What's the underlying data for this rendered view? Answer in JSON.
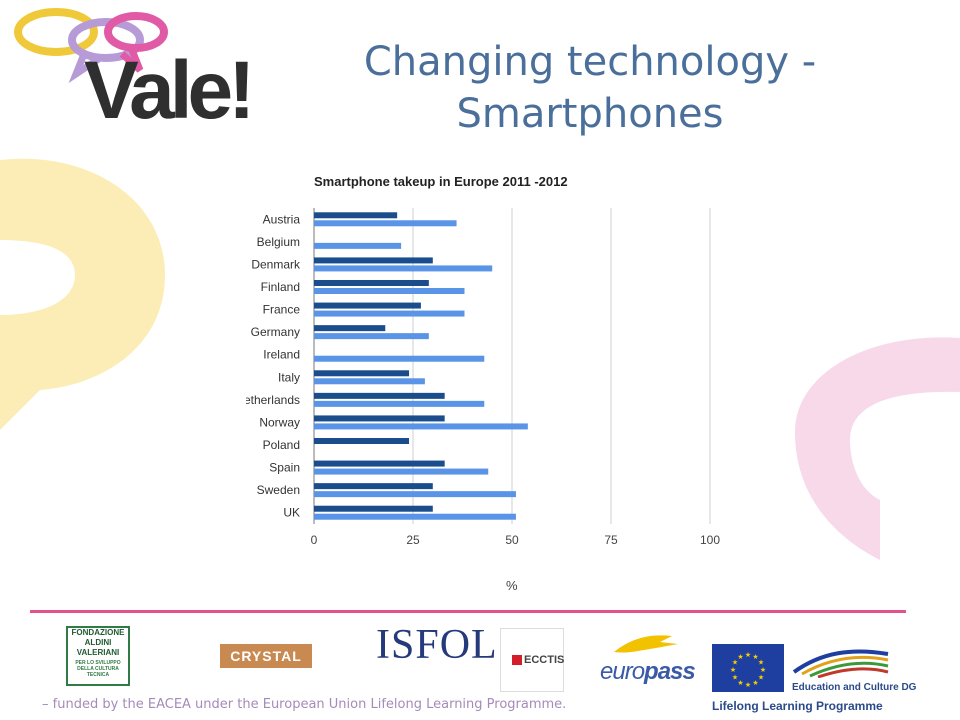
{
  "logo": {
    "text": "Vale!"
  },
  "title": {
    "line1": "Changing technology -",
    "line2": "Smartphones"
  },
  "colors": {
    "series_2011": "#1b4d8c",
    "series_2012": "#5a94e6",
    "title": "#4a6f9a",
    "separator": "#e4528e",
    "footer": "#a48bb8"
  },
  "chart_data": {
    "type": "bar",
    "orientation": "horizontal",
    "title": "Smartphone takeup in Europe 2011 -2012",
    "xlabel": "%",
    "ylabel": "",
    "xlim": [
      0,
      100
    ],
    "xticks": [
      0,
      25,
      50,
      75,
      100
    ],
    "grid": true,
    "categories": [
      "Austria",
      "Belgium",
      "Denmark",
      "Finland",
      "France",
      "Germany",
      "Ireland",
      "Italy",
      "Netherlands",
      "Norway",
      "Poland",
      "Spain",
      "Sweden",
      "UK"
    ],
    "series": [
      {
        "values": [
          21,
          0,
          30,
          29,
          27,
          18,
          0,
          24,
          33,
          33,
          24,
          33,
          30,
          30
        ]
      },
      {
        "values": [
          36,
          22,
          45,
          38,
          38,
          29,
          43,
          28,
          43,
          54,
          0,
          44,
          51,
          51
        ]
      }
    ]
  },
  "partners": {
    "aldini": {
      "line1": "FONDAZIONE",
      "line2": "ALDINI",
      "line3": "VALERIANI",
      "small": "PER LO SVILUPPO DELLA CULTURA TECNICA"
    },
    "crystal": "CRYSTAL",
    "isfol": "ISFOL",
    "ecctis": "ECCTIS",
    "europass": {
      "a": "euro",
      "b": "pass"
    },
    "eu_dg": "Education and Culture DG",
    "llp": "Lifelong Learning Programme"
  },
  "footer": "– funded by the EACEA under the European Union Lifelong Learning Programme."
}
